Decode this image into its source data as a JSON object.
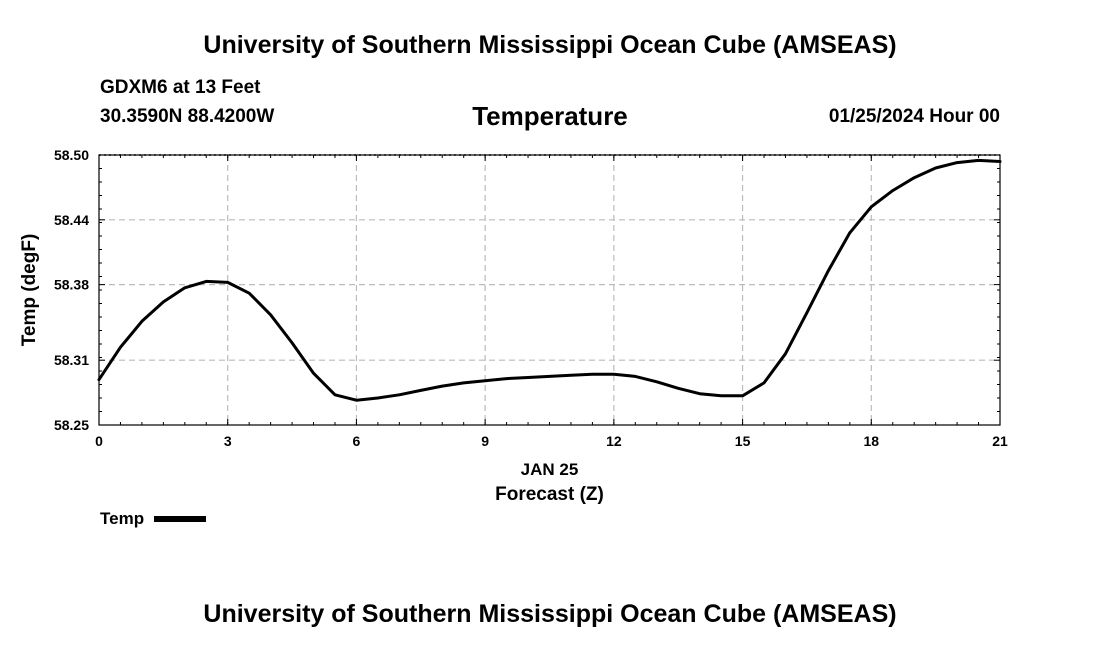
{
  "header": {
    "title": "University of Southern Mississippi Ocean Cube (AMSEAS)",
    "station": "GDXM6 at 13 Feet",
    "coords": "30.3590N  88.4200W",
    "chart_title": "Temperature",
    "datetime": "01/25/2024 Hour 00"
  },
  "footer": {
    "title": "University of Southern Mississippi Ocean Cube (AMSEAS)"
  },
  "legend": {
    "label": "Temp",
    "color": "#000000"
  },
  "chart_data": {
    "type": "line",
    "title": "Temperature",
    "xlabel": "Forecast (Z)",
    "xsublabel": "JAN 25",
    "ylabel": "Temp (degF)",
    "xlim": [
      0,
      21
    ],
    "ylim": [
      58.25,
      58.5
    ],
    "xticks": [
      0,
      3,
      6,
      9,
      12,
      15,
      18,
      21
    ],
    "xtick_labels": [
      "0",
      "3",
      "6",
      "9",
      "12",
      "15",
      "18",
      "21"
    ],
    "yticks": [
      58.25,
      58.31,
      58.38,
      58.44,
      58.5
    ],
    "ytick_labels": [
      "58.25",
      "58.31",
      "58.38",
      "58.44",
      "58.50"
    ],
    "grid": true,
    "series": [
      {
        "name": "Temp",
        "color": "#000000",
        "x": [
          0,
          0.5,
          1,
          1.5,
          2,
          2.5,
          3,
          3.5,
          4,
          4.5,
          5,
          5.5,
          6,
          6.5,
          7,
          7.5,
          8,
          8.5,
          9,
          9.5,
          10,
          10.5,
          11,
          11.5,
          12,
          12.5,
          13,
          13.5,
          14,
          14.5,
          15,
          15.5,
          16,
          16.5,
          17,
          17.5,
          18,
          18.5,
          19,
          19.5,
          20,
          20.5,
          21
        ],
        "values": [
          58.292,
          58.322,
          58.346,
          58.364,
          58.377,
          58.383,
          58.382,
          58.372,
          58.352,
          58.326,
          58.298,
          58.278,
          58.273,
          58.275,
          58.278,
          58.282,
          58.286,
          58.289,
          58.291,
          58.293,
          58.294,
          58.295,
          58.296,
          58.297,
          58.297,
          58.295,
          58.29,
          58.284,
          58.279,
          58.277,
          58.277,
          58.289,
          58.316,
          58.354,
          58.393,
          58.428,
          58.452,
          58.467,
          58.479,
          58.488,
          58.493,
          58.495,
          58.494
        ]
      }
    ]
  }
}
